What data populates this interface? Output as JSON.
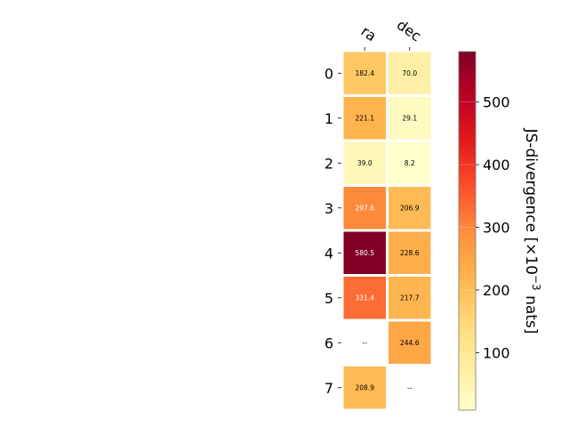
{
  "chart_data": {
    "type": "heatmap",
    "columns": [
      "ra",
      "dec"
    ],
    "rows": [
      "0",
      "1",
      "2",
      "3",
      "4",
      "5",
      "6",
      "7"
    ],
    "values": [
      [
        182.4,
        70.0
      ],
      [
        221.1,
        29.1
      ],
      [
        39.0,
        8.2
      ],
      [
        297.6,
        206.9
      ],
      [
        580.5,
        228.6
      ],
      [
        331.4,
        217.7
      ],
      [
        null,
        244.6
      ],
      [
        208.9,
        null
      ]
    ],
    "cell_labels": [
      [
        "182.4",
        "70.0"
      ],
      [
        "221.1",
        "29.1"
      ],
      [
        "39.0",
        "8.2"
      ],
      [
        "297.6",
        "206.9"
      ],
      [
        "580.5",
        "228.6"
      ],
      [
        "331.4",
        "217.7"
      ],
      [
        "--",
        "244.6"
      ],
      [
        "208.9",
        "--"
      ]
    ],
    "missing_label": "--",
    "colormap": "YlOrRd",
    "vmin": 8.2,
    "vmax": 580.5,
    "colorbar": {
      "ticks": [
        100,
        200,
        300,
        400,
        500
      ],
      "tick_labels": [
        "100",
        "200",
        "300",
        "400",
        "500"
      ],
      "label_parts": {
        "prefix": "JS-divergence [×10",
        "exponent": "−3",
        "suffix": " nats]"
      }
    },
    "grid": false,
    "legend": "none"
  }
}
